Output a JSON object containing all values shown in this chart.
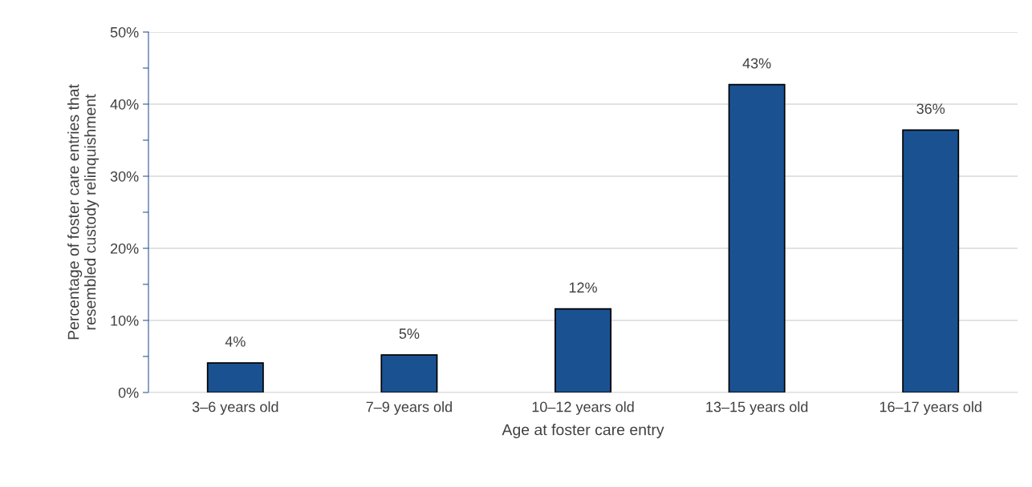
{
  "chart_data": {
    "type": "bar",
    "xlabel": "Age at foster care entry",
    "ylabel": "Percentage of foster care entries that\nresembled custody relinquishment",
    "categories": [
      "3–6 years old",
      "7–9 years old",
      "10–12 years old",
      "13–15 years old",
      "16–17 years old"
    ],
    "values": [
      4.1,
      5.2,
      11.6,
      42.7,
      36.4
    ],
    "value_labels": [
      "4%",
      "5%",
      "12%",
      "43%",
      "36%"
    ],
    "color": "#1a5191",
    "ylim": [
      0,
      50
    ],
    "yticks": [
      {
        "value": 0,
        "label": "0%"
      },
      {
        "value": 5,
        "label": null
      },
      {
        "value": 10,
        "label": "10%"
      },
      {
        "value": 15,
        "label": null
      },
      {
        "value": 20,
        "label": "20%"
      },
      {
        "value": 25,
        "label": null
      },
      {
        "value": 30,
        "label": "30%"
      },
      {
        "value": 35,
        "label": null
      },
      {
        "value": 40,
        "label": "40%"
      },
      {
        "value": 45,
        "label": null
      },
      {
        "value": 50,
        "label": "50%"
      }
    ],
    "grid": "y",
    "legend": false
  }
}
